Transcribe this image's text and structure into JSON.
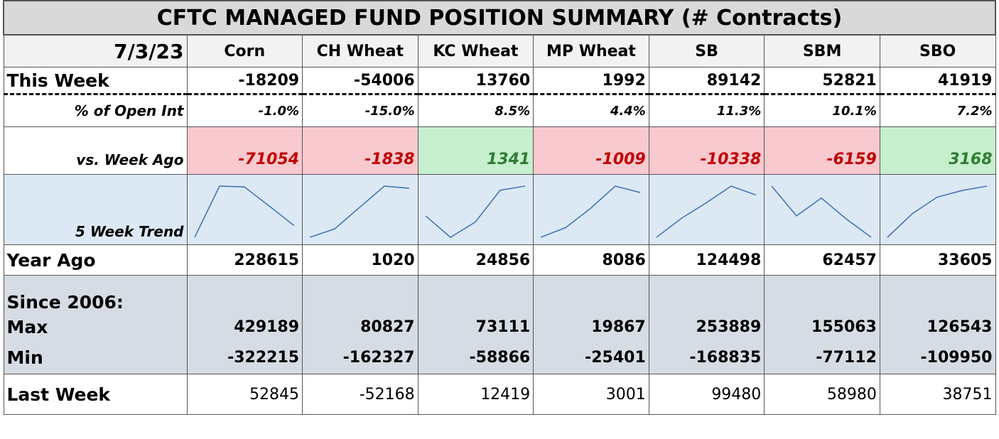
{
  "title": "CFTC MANAGED FUND POSITION SUMMARY (# Contracts)",
  "date": "7/3/23",
  "columns": [
    "Corn",
    "CH Wheat",
    "KC Wheat",
    "MP Wheat",
    "SB",
    "SBM",
    "SBO"
  ],
  "this_week": {
    "label": "This Week",
    "values": [
      -18209,
      -54006,
      13760,
      1992,
      89142,
      52821,
      41919
    ]
  },
  "open_interest": {
    "label": "% of Open Int",
    "values": [
      "-1.0%",
      "-15.0%",
      "8.5%",
      "4.4%",
      "11.3%",
      "10.1%",
      "7.2%"
    ]
  },
  "week_ago": {
    "label": "vs. Week Ago",
    "values": [
      -71054,
      -1838,
      1341,
      -1009,
      -10338,
      -6159,
      3168
    ]
  },
  "trend": {
    "label": "5 Week Trend",
    "values": [
      [
        -60000,
        125000,
        122000,
        52845,
        -18209
      ],
      [
        -95000,
        -88000,
        -70000,
        -52168,
        -54006
      ],
      [
        4000,
        -3000,
        2000,
        12419,
        13760
      ],
      [
        -5000,
        -3500,
        -500,
        3001,
        1992
      ],
      [
        40000,
        62000,
        80000,
        99480,
        89142
      ],
      [
        70000,
        60000,
        66000,
        58980,
        52821
      ],
      [
        5000,
        22000,
        34000,
        38751,
        41919
      ]
    ]
  },
  "year_ago": {
    "label": "Year Ago",
    "values": [
      228615,
      1020,
      24856,
      8086,
      124498,
      62457,
      33605
    ]
  },
  "since": {
    "label": "Since 2006:"
  },
  "max": {
    "label": "Max",
    "values": [
      429189,
      80827,
      73111,
      19867,
      253889,
      155063,
      126543
    ]
  },
  "min": {
    "label": "Min",
    "values": [
      -322215,
      -162327,
      -58866,
      -25401,
      -168835,
      -77112,
      -109950
    ]
  },
  "last_week": {
    "label": "Last Week",
    "values": [
      52845,
      -52168,
      12419,
      3001,
      99480,
      58980,
      38751
    ]
  }
}
